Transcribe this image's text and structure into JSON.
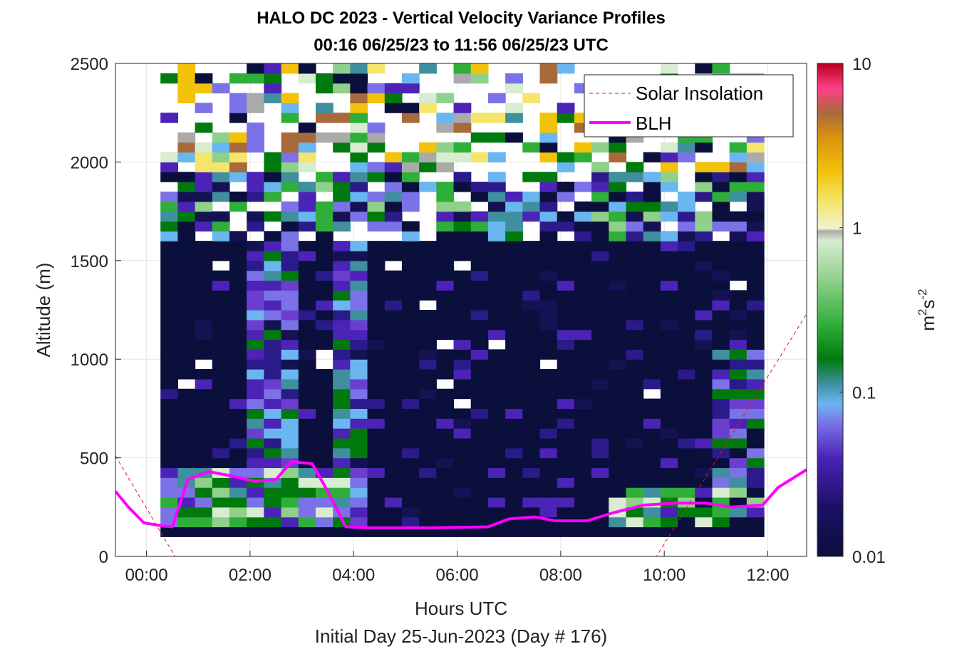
{
  "chart_data": {
    "type": "heatmap",
    "title": "HALO DC 2023 - Vertical Velocity Variance Profiles",
    "subtitle": "00:16 06/25/23 to 11:56 06/25/23  UTC",
    "xlabel": "Hours UTC",
    "xlabel2": "Initial Day 25-Jun-2023 (Day # 176)",
    "ylabel": "Altitude (m)",
    "xlim": [
      -0.6,
      12.75
    ],
    "ylim": [
      0,
      2500
    ],
    "x_ticks": [
      0,
      2,
      4,
      6,
      8,
      10,
      12
    ],
    "x_tick_labels": [
      "00:00",
      "02:00",
      "04:00",
      "06:00",
      "08:00",
      "10:00",
      "12:00"
    ],
    "y_ticks": [
      0,
      500,
      1000,
      1500,
      2000,
      2500
    ],
    "y_tick_labels": [
      "0",
      "500",
      "1000",
      "1500",
      "2000",
      "2500"
    ],
    "grid": true,
    "colorbar": {
      "scale": "log",
      "range": [
        0.01,
        10
      ],
      "tick_values": [
        0.01,
        0.1,
        1,
        10
      ],
      "tick_labels": [
        "0.01",
        "0.1",
        "1",
        "10"
      ],
      "label_base": "m",
      "label_sup1": "2",
      "label_mid": "s",
      "label_sup2": "-2"
    },
    "heatmap_grid": {
      "x_start": 0.27,
      "x_end": 11.92,
      "time_step_hours": 0.333,
      "altitude_start": 100,
      "altitude_end": 2500,
      "altitude_step": 50
    },
    "legend": {
      "position": "top-right",
      "entries": [
        {
          "label": "Solar Insolation",
          "color": "#e31a1c",
          "style": "dashed"
        },
        {
          "label": "BLH",
          "color": "#ff00ff",
          "style": "solid"
        }
      ]
    },
    "series": [
      {
        "name": "BLH",
        "color": "#ff00ff",
        "x": [
          -0.6,
          -0.35,
          -0.05,
          0.3,
          0.5,
          0.8,
          1.2,
          1.6,
          2.1,
          2.5,
          2.8,
          3.2,
          3.5,
          3.85,
          4.3,
          5.5,
          6.6,
          7.0,
          7.5,
          7.9,
          8.5,
          9.0,
          9.6,
          10.2,
          10.8,
          11.3,
          11.9,
          12.2,
          12.75
        ],
        "y": [
          330,
          250,
          170,
          155,
          150,
          390,
          430,
          410,
          380,
          390,
          480,
          470,
          330,
          150,
          145,
          145,
          150,
          190,
          200,
          180,
          180,
          220,
          260,
          270,
          270,
          250,
          260,
          350,
          440
        ]
      },
      {
        "name": "Solar Insolation",
        "color": "#e31a1c",
        "x": [
          -0.6,
          0.55,
          9.85,
          12.75
        ],
        "y": [
          510,
          0,
          0,
          1230
        ]
      }
    ]
  }
}
